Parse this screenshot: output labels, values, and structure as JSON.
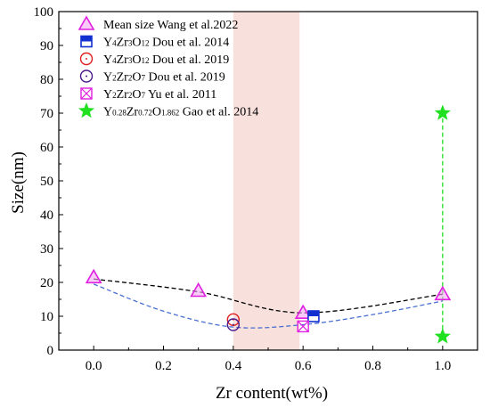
{
  "chart_data": {
    "type": "scatter",
    "xlabel": "Zr content(wt%)",
    "ylabel": "Size(nm)",
    "xlim": [
      -0.1,
      1.1
    ],
    "ylim": [
      0,
      100
    ],
    "x_ticks": [
      0.0,
      0.2,
      0.4,
      0.6,
      0.8,
      1.0
    ],
    "x_tick_labels": [
      "0.0",
      "0.2",
      "0.4",
      "0.6",
      "0.8",
      "1.0"
    ],
    "y_ticks": [
      0,
      10,
      20,
      30,
      40,
      50,
      60,
      70,
      80,
      90,
      100
    ],
    "y_tick_labels": [
      "0",
      "10",
      "20",
      "30",
      "40",
      "50",
      "60",
      "70",
      "80",
      "90",
      "100"
    ],
    "legend_position": "top-left",
    "highlight_band": {
      "x_from": 0.4,
      "x_to": 0.59,
      "color": "#f8e0dc"
    },
    "series": [
      {
        "name": "Mean size Wang et al.2022",
        "marker": "triangle",
        "color": "#e020e0",
        "points": [
          {
            "x": 0.0,
            "y": 21.5
          },
          {
            "x": 0.3,
            "y": 17.5
          },
          {
            "x": 0.6,
            "y": 11.0
          },
          {
            "x": 1.0,
            "y": 16.5
          }
        ]
      },
      {
        "name": "Y4Zr3O12 Dou et al. 2014",
        "name_parts": [
          [
            "Y",
            ""
          ],
          [
            "4",
            "sub"
          ],
          [
            "Zr",
            ""
          ],
          [
            "3",
            "sub"
          ],
          [
            "O",
            ""
          ],
          [
            "12",
            "sub"
          ],
          [
            " Dou et al. 2014",
            ""
          ]
        ],
        "marker": "half-square",
        "color": "#1030d0",
        "points": [
          {
            "x": 0.63,
            "y": 10.0
          }
        ]
      },
      {
        "name": "Y4Zr3O12 Dou et al. 2019",
        "name_parts": [
          [
            "Y",
            ""
          ],
          [
            "4",
            "sub"
          ],
          [
            "Zr",
            ""
          ],
          [
            "3",
            "sub"
          ],
          [
            "O",
            ""
          ],
          [
            "12",
            "sub"
          ],
          [
            " Dou et al. 2019",
            ""
          ]
        ],
        "marker": "dotted-circle",
        "color": "#e02020",
        "points": [
          {
            "x": 0.4,
            "y": 9.0
          }
        ]
      },
      {
        "name": "Y2Zr2O7 Dou et al. 2019",
        "name_parts": [
          [
            "Y",
            ""
          ],
          [
            "2",
            "sub"
          ],
          [
            "Zr",
            ""
          ],
          [
            "2",
            "sub"
          ],
          [
            "O",
            ""
          ],
          [
            "7",
            "sub"
          ],
          [
            " Dou et al. 2019",
            ""
          ]
        ],
        "marker": "dotted-circle",
        "color": "#4a1a8a",
        "points": [
          {
            "x": 0.4,
            "y": 7.5
          }
        ]
      },
      {
        "name": "Y2Zr2O7 Yu et al. 2011",
        "name_parts": [
          [
            "Y",
            ""
          ],
          [
            "2",
            "sub"
          ],
          [
            "Zr",
            ""
          ],
          [
            "2",
            "sub"
          ],
          [
            "O",
            ""
          ],
          [
            "7",
            "sub"
          ],
          [
            " Yu et al. 2011",
            ""
          ]
        ],
        "marker": "crossed-square",
        "color": "#e020e0",
        "points": [
          {
            "x": 0.6,
            "y": 7.0
          }
        ]
      },
      {
        "name": "Y0.28Zr0.72O1.862 Gao et al. 2014",
        "name_parts": [
          [
            "Y",
            ""
          ],
          [
            "0.28",
            "sub"
          ],
          [
            "Zr",
            ""
          ],
          [
            "0.72",
            "sub"
          ],
          [
            "O",
            ""
          ],
          [
            "1.862",
            "sub"
          ],
          [
            " Gao et al. 2014",
            ""
          ]
        ],
        "marker": "star",
        "color": "#20e020",
        "points": [
          {
            "x": 1.0,
            "y": 70.0
          },
          {
            "x": 1.0,
            "y": 4.0
          }
        ]
      }
    ],
    "curves": [
      {
        "style": "dashed",
        "color": "#000000",
        "points": [
          [
            0.0,
            21.0
          ],
          [
            0.3,
            17.2
          ],
          [
            0.6,
            11.0
          ],
          [
            1.0,
            16.5
          ]
        ]
      },
      {
        "style": "dashed",
        "color": "#4a70d0",
        "points": [
          [
            0.0,
            19.5
          ],
          [
            0.2,
            11.5
          ],
          [
            0.4,
            6.8
          ],
          [
            0.6,
            7.5
          ],
          [
            0.8,
            10.5
          ],
          [
            1.0,
            14.5
          ]
        ]
      },
      {
        "style": "dashed",
        "color": "#20e020",
        "points": [
          [
            1.0,
            4.0
          ],
          [
            1.0,
            70.0
          ]
        ]
      }
    ]
  }
}
